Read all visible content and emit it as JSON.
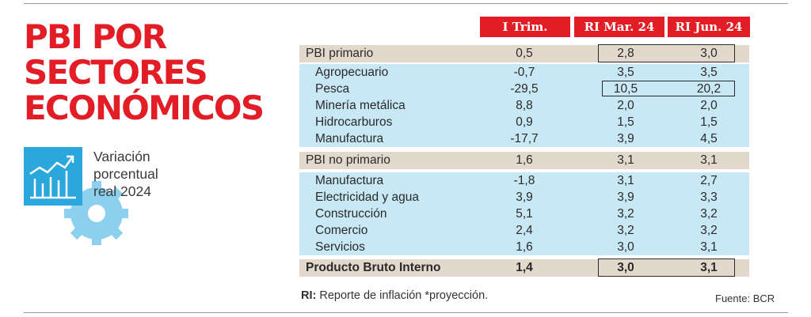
{
  "title_lines": [
    "PBI POR",
    "SECTORES",
    "ECONÓMICOS"
  ],
  "subtitle_lines": [
    "Variación",
    "porcentual",
    "real 2024"
  ],
  "icon": "growth-chart-gear-icon",
  "colors": {
    "accent": "#e21d26",
    "section_row": "#e2d8cc",
    "sub_row": "#c7e8f4",
    "icon_blue": "#2aa8de",
    "gear_blue": "#8ccfee"
  },
  "chart_data": {
    "type": "table",
    "columns": [
      "I Trim.",
      "RI Mar. 24",
      "RI Jun. 24"
    ],
    "rows": [
      {
        "label": "PBI primario",
        "values": [
          "0,5",
          "2,8",
          "3,0"
        ],
        "kind": "section"
      },
      {
        "label": "Agropecuario",
        "values": [
          "-0,7",
          "3,5",
          "3,5"
        ],
        "kind": "sub"
      },
      {
        "label": "Pesca",
        "values": [
          "-29,5",
          "10,5",
          "20,2"
        ],
        "kind": "sub"
      },
      {
        "label": "Minería metálica",
        "values": [
          "8,8",
          "2,0",
          "2,0"
        ],
        "kind": "sub"
      },
      {
        "label": "Hidrocarburos",
        "values": [
          "0,9",
          "1,5",
          "1,5"
        ],
        "kind": "sub"
      },
      {
        "label": "Manufactura",
        "values": [
          "-17,7",
          "3,9",
          "4,5"
        ],
        "kind": "sub"
      },
      {
        "label": "PBI no primario",
        "values": [
          "1,6",
          "3,1",
          "3,1"
        ],
        "kind": "section"
      },
      {
        "label": "Manufactura",
        "values": [
          "-1,8",
          "3,1",
          "2,7"
        ],
        "kind": "sub"
      },
      {
        "label": "Electricidad y agua",
        "values": [
          "3,9",
          "3,9",
          "3,3"
        ],
        "kind": "sub"
      },
      {
        "label": "Construcción",
        "values": [
          "5,1",
          "3,2",
          "3,2"
        ],
        "kind": "sub"
      },
      {
        "label": "Comercio",
        "values": [
          "2,4",
          "3,2",
          "3,2"
        ],
        "kind": "sub"
      },
      {
        "label": "Servicios",
        "values": [
          "1,6",
          "3,0",
          "3,1"
        ],
        "kind": "sub"
      },
      {
        "label": "Producto Bruto Interno",
        "values": [
          "1,4",
          "3,0",
          "3,1"
        ],
        "kind": "total"
      }
    ]
  },
  "footnote": {
    "abbr": "RI:",
    "text": " Reporte de inflación *proyección."
  },
  "source": "Fuente: BCR"
}
